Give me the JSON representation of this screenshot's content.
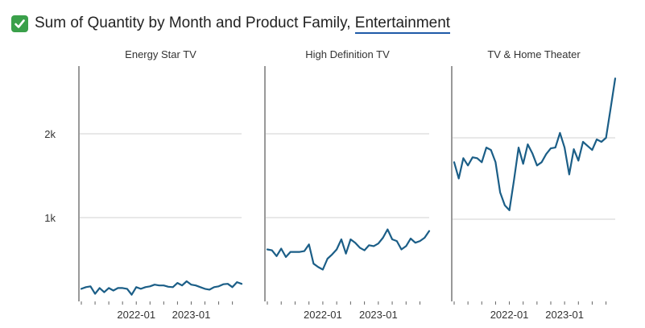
{
  "header": {
    "title_prefix": "Sum of Quantity by Month and Product Family, ",
    "title_link": "Entertainment",
    "status_icon": "check-icon",
    "status_color": "#3aa04a"
  },
  "chart_data": {
    "type": "line",
    "title": "Sum of Quantity by Month and Product Family, Entertainment",
    "xlabel": "",
    "ylabel": "",
    "y_ticks": [
      1000,
      2000
    ],
    "y_tick_labels": [
      "1k",
      "2k"
    ],
    "x_tick_labels": [
      "2022-01",
      "2023-01"
    ],
    "line_color": "#1b5e87",
    "grid": true,
    "months": [
      "2021-01",
      "2021-02",
      "2021-03",
      "2021-04",
      "2021-05",
      "2021-06",
      "2021-07",
      "2021-08",
      "2021-09",
      "2021-10",
      "2021-11",
      "2021-12",
      "2022-01",
      "2022-02",
      "2022-03",
      "2022-04",
      "2022-05",
      "2022-06",
      "2022-07",
      "2022-08",
      "2022-09",
      "2022-10",
      "2022-11",
      "2022-12",
      "2023-01",
      "2023-02",
      "2023-03",
      "2023-04",
      "2023-05",
      "2023-06",
      "2023-07",
      "2023-08",
      "2023-09",
      "2023-10",
      "2023-11",
      "2023-12"
    ],
    "facets": [
      {
        "name": "Energy Star TV",
        "ylim": [
          0,
          2800
        ],
        "values": [
          150,
          170,
          180,
          90,
          160,
          110,
          160,
          130,
          160,
          160,
          150,
          80,
          170,
          150,
          170,
          180,
          200,
          190,
          190,
          175,
          170,
          220,
          190,
          240,
          200,
          190,
          170,
          150,
          140,
          170,
          180,
          205,
          210,
          170,
          230,
          210
        ]
      },
      {
        "name": "High Definition TV",
        "ylim": [
          0,
          2800
        ],
        "values": [
          620,
          610,
          540,
          630,
          530,
          590,
          590,
          590,
          600,
          680,
          450,
          410,
          380,
          510,
          560,
          620,
          740,
          570,
          740,
          700,
          640,
          610,
          670,
          660,
          690,
          760,
          860,
          740,
          720,
          620,
          660,
          750,
          700,
          720,
          760,
          840
        ]
      },
      {
        "name": "TV & Home Theater",
        "ylim": [
          0,
          2800
        ],
        "values": [
          1700,
          1500,
          1750,
          1660,
          1760,
          1750,
          1700,
          1880,
          1850,
          1700,
          1330,
          1170,
          1110,
          1480,
          1880,
          1680,
          1920,
          1810,
          1660,
          1700,
          1800,
          1870,
          1880,
          2060,
          1880,
          1550,
          1860,
          1720,
          1950,
          1900,
          1850,
          1980,
          1950,
          2000,
          2360,
          2730
        ]
      }
    ]
  }
}
